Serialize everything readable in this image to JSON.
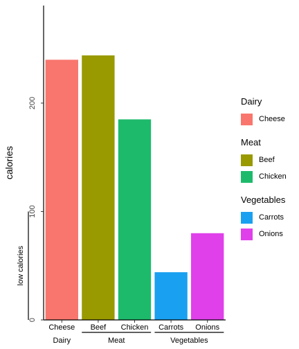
{
  "chart_data": {
    "type": "bar",
    "xlabel": "",
    "ylabel": "calories",
    "secondary_ylabel": "low calories",
    "ylim": [
      0,
      290
    ],
    "yticks": [
      0,
      100,
      200
    ],
    "low_calories_bracket": [
      0,
      100
    ],
    "categories": [
      "Cheese",
      "Beef",
      "Chicken",
      "Carrots",
      "Onions"
    ],
    "values": [
      240,
      244,
      185,
      44,
      80
    ],
    "colors": [
      "#F8766D",
      "#999900",
      "#1DBA6B",
      "#1AA0F0",
      "#E040EA"
    ],
    "groups": [
      {
        "name": "Dairy",
        "items": [
          0
        ]
      },
      {
        "name": "Meat",
        "items": [
          1,
          2
        ]
      },
      {
        "name": "Vegetables",
        "items": [
          3,
          4
        ]
      }
    ],
    "legend_position": "right"
  }
}
